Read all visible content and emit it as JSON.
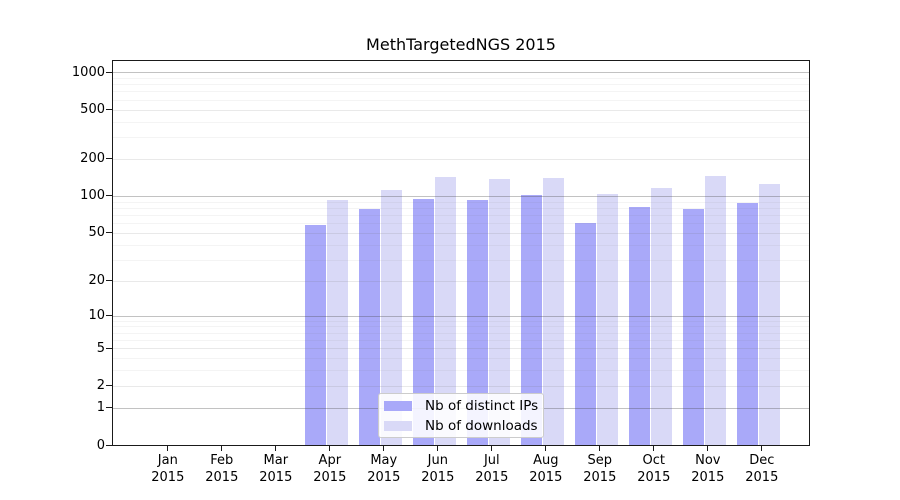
{
  "chart_data": {
    "type": "bar",
    "title": "MethTargetedNGS 2015",
    "categories": [
      "Jan 2015",
      "Feb 2015",
      "Mar 2015",
      "Apr 2015",
      "May 2015",
      "Jun 2015",
      "Jul 2015",
      "Aug 2015",
      "Sep 2015",
      "Oct 2015",
      "Nov 2015",
      "Dec 2015"
    ],
    "series": [
      {
        "name": "Nb of distinct IPs",
        "color": "#a9a9f9",
        "values": [
          0,
          0,
          0,
          58,
          78,
          95,
          92,
          102,
          60,
          82,
          79,
          87
        ]
      },
      {
        "name": "Nb of downloads",
        "color": "#d9d9f7",
        "values": [
          0,
          0,
          0,
          93,
          111,
          143,
          138,
          139,
          103,
          116,
          145,
          126
        ]
      }
    ],
    "xlabel": "",
    "ylabel": "",
    "y_ticks": [
      0,
      1,
      2,
      5,
      10,
      20,
      50,
      100,
      200,
      500,
      1000
    ],
    "y_minor_ticks": [
      3,
      4,
      6,
      7,
      8,
      9,
      30,
      40,
      60,
      70,
      80,
      90,
      300,
      400,
      600,
      700,
      800,
      900
    ],
    "y_scale": "log10(1+y)",
    "ylim": [
      0,
      1230
    ],
    "grid": true,
    "legend_position": "bottom-center",
    "axis_color": "#1a1a1a",
    "major_gridline_color": "#a9a9a9",
    "minor_gridline_color": "#f0f0f0"
  }
}
